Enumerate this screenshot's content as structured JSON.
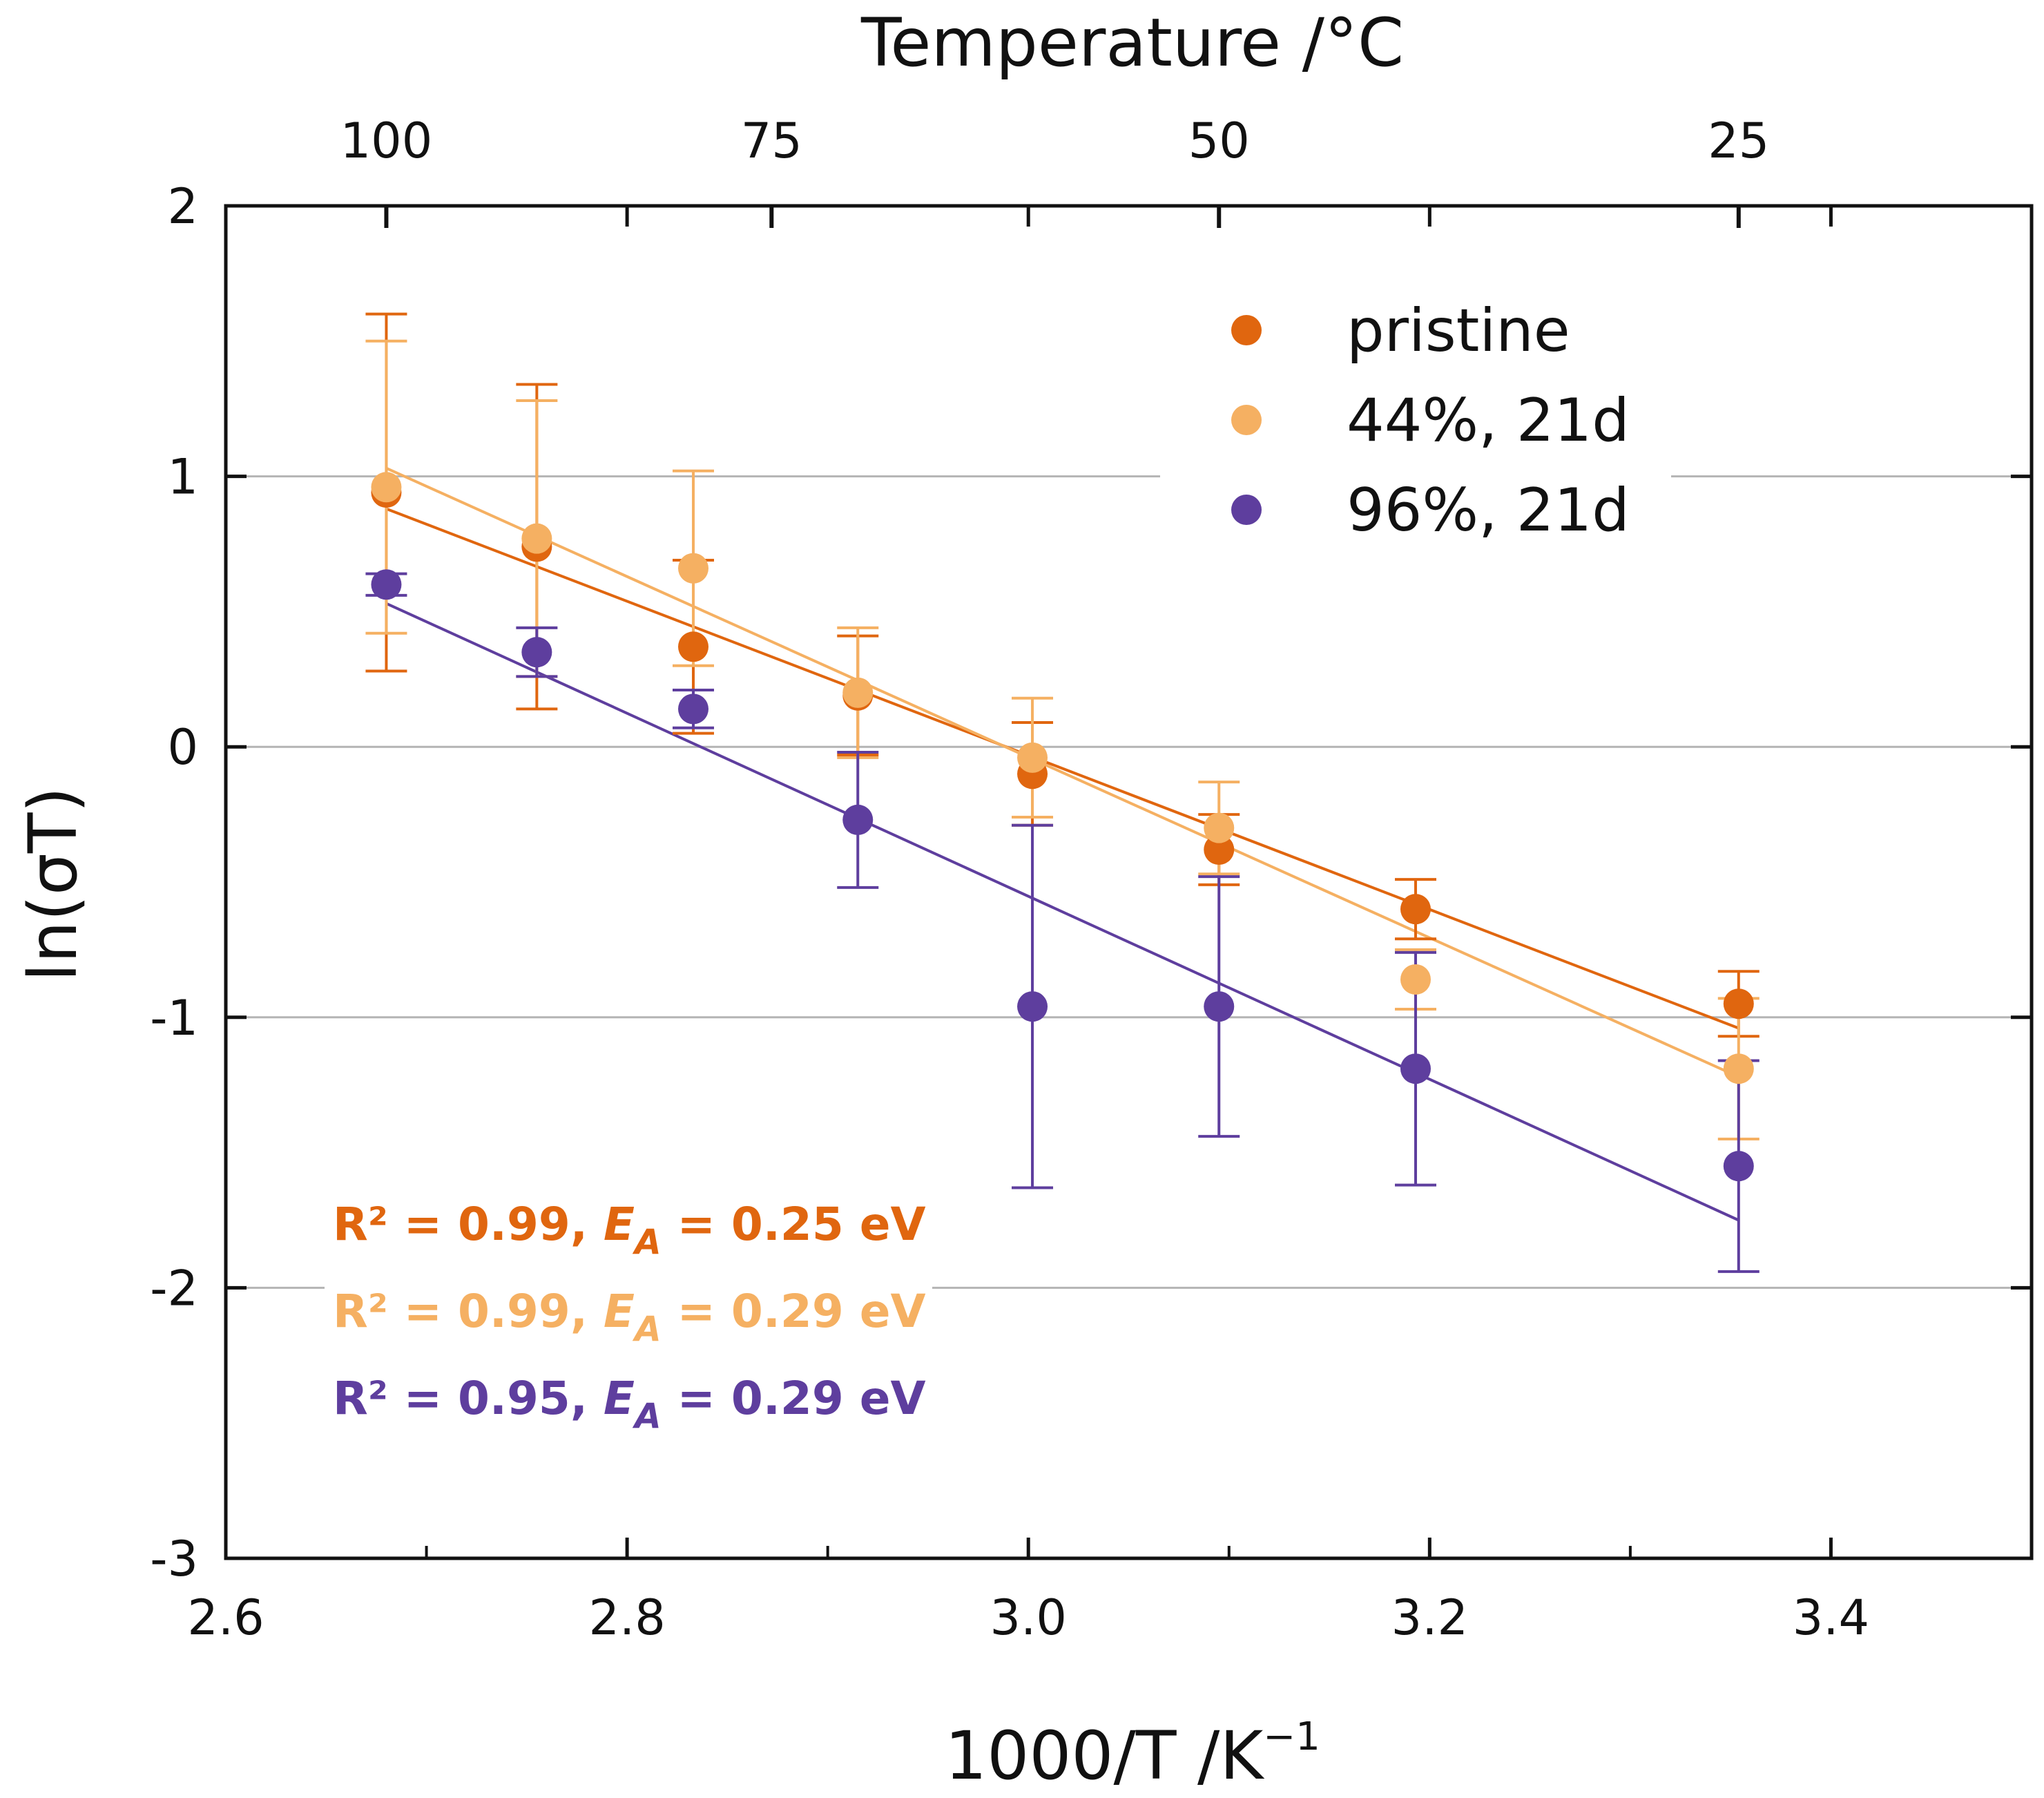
{
  "colors": {
    "pristine": "#e0660f",
    "rh44": "#f5b062",
    "rh96": "#5e3e9e",
    "axis": "#111111",
    "grid": "#b4b4b4"
  },
  "chart_data": {
    "type": "scatter",
    "title": "",
    "xlabel": "1000/T /K",
    "xlabel_sup": "−1",
    "ylabel": "ln(σT)",
    "top_xlabel": "Temperature /°C",
    "xlim": [
      2.6,
      3.5
    ],
    "ylim": [
      -3,
      2
    ],
    "xticks": [
      {
        "value": 2.6,
        "label": "2.6"
      },
      {
        "value": 2.8,
        "label": "2.8"
      },
      {
        "value": 3.0,
        "label": "3.0"
      },
      {
        "value": 3.2,
        "label": "3.2"
      },
      {
        "value": 3.4,
        "label": "3.4"
      }
    ],
    "yticks": [
      {
        "value": -3,
        "label": "-3"
      },
      {
        "value": -2,
        "label": "-2"
      },
      {
        "value": -1,
        "label": "-1"
      },
      {
        "value": 0,
        "label": "0"
      },
      {
        "value": 1,
        "label": "1"
      },
      {
        "value": 2,
        "label": "2"
      }
    ],
    "top_ticks": [
      {
        "value": 2.68,
        "label": "100"
      },
      {
        "value": 2.872,
        "label": "75"
      },
      {
        "value": 3.095,
        "label": "50"
      },
      {
        "value": 3.354,
        "label": "25"
      }
    ],
    "grid_y": [
      -2,
      -1,
      0,
      1
    ],
    "legend_position": "top-right",
    "series": [
      {
        "name": "pristine",
        "color_key": "pristine",
        "x": [
          2.68,
          2.755,
          2.833,
          2.915,
          3.002,
          3.095,
          3.193,
          3.354
        ],
        "y": [
          0.94,
          0.74,
          0.37,
          0.19,
          -0.1,
          -0.38,
          -0.6,
          -0.95
        ],
        "err": [
          0.66,
          0.6,
          0.32,
          0.22,
          0.19,
          0.13,
          0.11,
          0.12
        ],
        "fit": {
          "x": [
            2.68,
            3.354
          ],
          "y": [
            0.88,
            -1.04
          ]
        }
      },
      {
        "name": "44%, 21d",
        "color_key": "rh44",
        "x": [
          2.68,
          2.755,
          2.833,
          2.915,
          3.002,
          3.095,
          3.193,
          3.354
        ],
        "y": [
          0.96,
          0.77,
          0.66,
          0.2,
          -0.04,
          -0.3,
          -0.86,
          -1.19
        ],
        "err": [
          0.54,
          0.51,
          0.36,
          0.24,
          0.22,
          0.17,
          0.11,
          0.26
        ],
        "fit": {
          "x": [
            2.68,
            3.354
          ],
          "y": [
            1.03,
            -1.22
          ]
        }
      },
      {
        "name": "96%, 21d",
        "color_key": "rh96",
        "x": [
          2.68,
          2.755,
          2.833,
          2.915,
          3.002,
          3.095,
          3.193,
          3.354
        ],
        "y": [
          0.6,
          0.35,
          0.14,
          -0.27,
          -0.96,
          -0.96,
          -1.19,
          -1.55
        ],
        "err": [
          0.04,
          0.09,
          0.07,
          0.25,
          0.67,
          0.48,
          0.43,
          0.39
        ],
        "fit": {
          "x": [
            2.68,
            3.354
          ],
          "y": [
            0.53,
            -1.75
          ]
        }
      }
    ],
    "annotations": [
      {
        "color_key": "pristine",
        "prefix": "R² = 0.99, ",
        "var": "E",
        "sub": "A",
        "suffix": " = 0.25 eV"
      },
      {
        "color_key": "rh44",
        "prefix": "R² = 0.99, ",
        "var": "E",
        "sub": "A",
        "suffix": " = 0.29 eV"
      },
      {
        "color_key": "rh96",
        "prefix": "R² = 0.95, ",
        "var": "E",
        "sub": "A",
        "suffix": " = 0.29 eV"
      }
    ]
  }
}
